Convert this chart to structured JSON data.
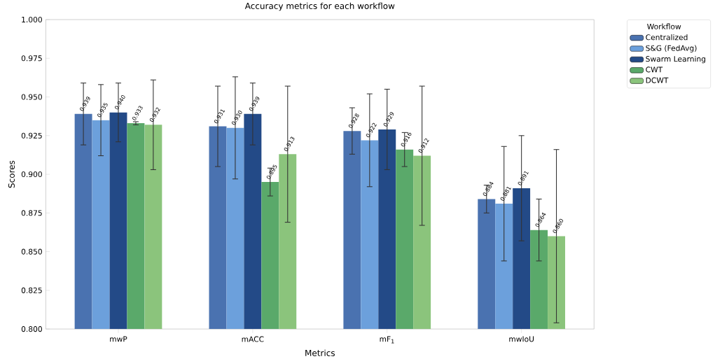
{
  "chart_data": {
    "type": "bar",
    "title": "Accuracy metrics for each workflow",
    "xlabel": "Metrics",
    "ylabel": "Scores",
    "legend_title": "Workflow",
    "categories": [
      "mwP",
      "mACC",
      "mF$_{1}$",
      "mwIoU"
    ],
    "series": [
      {
        "name": "Centralized",
        "color": "#4a72b0",
        "values": [
          0.939,
          0.931,
          0.928,
          0.884
        ],
        "errors": [
          0.02,
          0.026,
          0.015,
          0.009
        ],
        "value_labels": [
          "0.939",
          "0.931",
          "0.928",
          "0.884"
        ]
      },
      {
        "name": "S&G (FedAvg)",
        "color": "#6ca0dc",
        "values": [
          0.935,
          0.93,
          0.922,
          0.881
        ],
        "errors": [
          0.023,
          0.033,
          0.03,
          0.037
        ],
        "value_labels": [
          "0.935",
          "0.930",
          "0.922",
          "0.881"
        ]
      },
      {
        "name": "Swarm Learning",
        "color": "#234a87",
        "values": [
          0.94,
          0.939,
          0.929,
          0.891
        ],
        "errors": [
          0.019,
          0.02,
          0.026,
          0.034
        ],
        "value_labels": [
          "0.940",
          "0.939",
          "0.929",
          "0.891"
        ]
      },
      {
        "name": "CWT",
        "color": "#5aa96a",
        "values": [
          0.933,
          0.895,
          0.916,
          0.864
        ],
        "errors": [
          0.001,
          0.009,
          0.011,
          0.02
        ],
        "value_labels": [
          "0.933",
          "0.895",
          "0.916",
          "0.864"
        ]
      },
      {
        "name": "DCWT",
        "color": "#8bc47c",
        "values": [
          0.932,
          0.913,
          0.912,
          0.86
        ],
        "errors": [
          0.029,
          0.044,
          0.045,
          0.056
        ],
        "value_labels": [
          "0.932",
          "0.913",
          "0.912",
          "0.860"
        ]
      }
    ],
    "ylim": [
      0.8,
      1.0
    ],
    "yticks": [
      {
        "value": 0.8,
        "label": "0.800"
      },
      {
        "value": 0.825,
        "label": "0.825"
      },
      {
        "value": 0.85,
        "label": "0.850"
      },
      {
        "value": 0.875,
        "label": "0.875"
      },
      {
        "value": 0.9,
        "label": "0.900"
      },
      {
        "value": 0.925,
        "label": "0.925"
      },
      {
        "value": 0.95,
        "label": "0.950"
      },
      {
        "value": 0.975,
        "label": "0.975"
      },
      {
        "value": 1.0,
        "label": "1.000"
      }
    ],
    "legend": "right"
  }
}
